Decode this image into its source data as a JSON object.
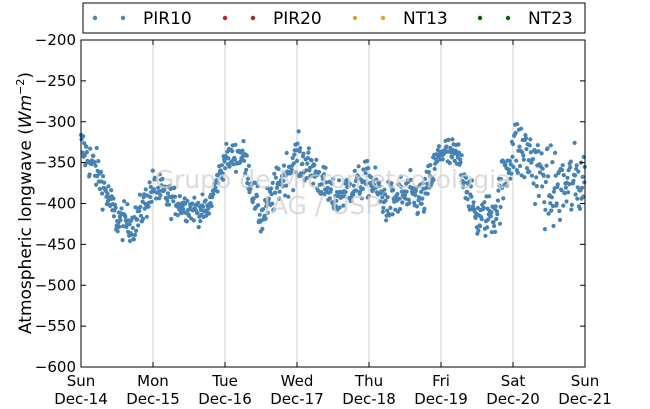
{
  "chart_data": {
    "type": "scatter",
    "ylabel_text": "Atmospheric longwave (",
    "ylabel_unit_base": "Wm",
    "ylabel_unit_exp": "−2",
    "ylabel_close": ")",
    "ylim": [
      -600,
      -200
    ],
    "yticks": [
      -600,
      -550,
      -500,
      -450,
      -400,
      -350,
      -300,
      -250,
      -200
    ],
    "ytick_labels": [
      "−600",
      "−550",
      "−500",
      "−450",
      "−400",
      "−350",
      "−300",
      "−250",
      "−200"
    ],
    "xlim": [
      "2014-12-14",
      "2014-12-21"
    ],
    "xticks": [
      {
        "day": "Sun",
        "date": "Dec-14"
      },
      {
        "day": "Mon",
        "date": "Dec-15"
      },
      {
        "day": "Tue",
        "date": "Dec-16"
      },
      {
        "day": "Wed",
        "date": "Dec-17"
      },
      {
        "day": "Thu",
        "date": "Dec-18"
      },
      {
        "day": "Fri",
        "date": "Dec-19"
      },
      {
        "day": "Sat",
        "date": "Dec-20"
      },
      {
        "day": "Sun",
        "date": "Dec-21"
      }
    ],
    "grid": "vertical",
    "legend_position": "top",
    "series": [
      {
        "name": "PIR10",
        "color": "#4682b4",
        "x_hours": [
          0,
          6,
          12,
          18,
          24,
          30,
          36,
          42,
          48,
          54,
          60,
          66,
          72,
          78,
          84,
          90,
          96,
          102,
          108,
          114,
          120,
          126,
          132,
          138,
          144,
          150,
          156,
          162,
          168
        ],
        "values": [
          -330,
          -365,
          -420,
          -425,
          -380,
          -395,
          -405,
          -410,
          -345,
          -340,
          -420,
          -375,
          -345,
          -360,
          -395,
          -380,
          -370,
          -400,
          -390,
          -395,
          -335,
          -345,
          -420,
          -410,
          -330,
          -345,
          -385,
          -380,
          -370
        ],
        "spread_hours": [
          0,
          12,
          24,
          36,
          48,
          60,
          72,
          84,
          96,
          108,
          120,
          132,
          144,
          156,
          168
        ],
        "spread_values": [
          25,
          20,
          20,
          15,
          15,
          20,
          25,
          20,
          20,
          25,
          20,
          20,
          35,
          45,
          40
        ]
      },
      {
        "name": "PIR20",
        "color": "#b22222",
        "values": []
      },
      {
        "name": "NT13",
        "color": "#daa520",
        "values": []
      },
      {
        "name": "NT23",
        "color": "#006400",
        "values": []
      }
    ]
  },
  "watermark": {
    "line1": "Grupo de Micrometeorologia",
    "line2": "IAG / USP"
  }
}
